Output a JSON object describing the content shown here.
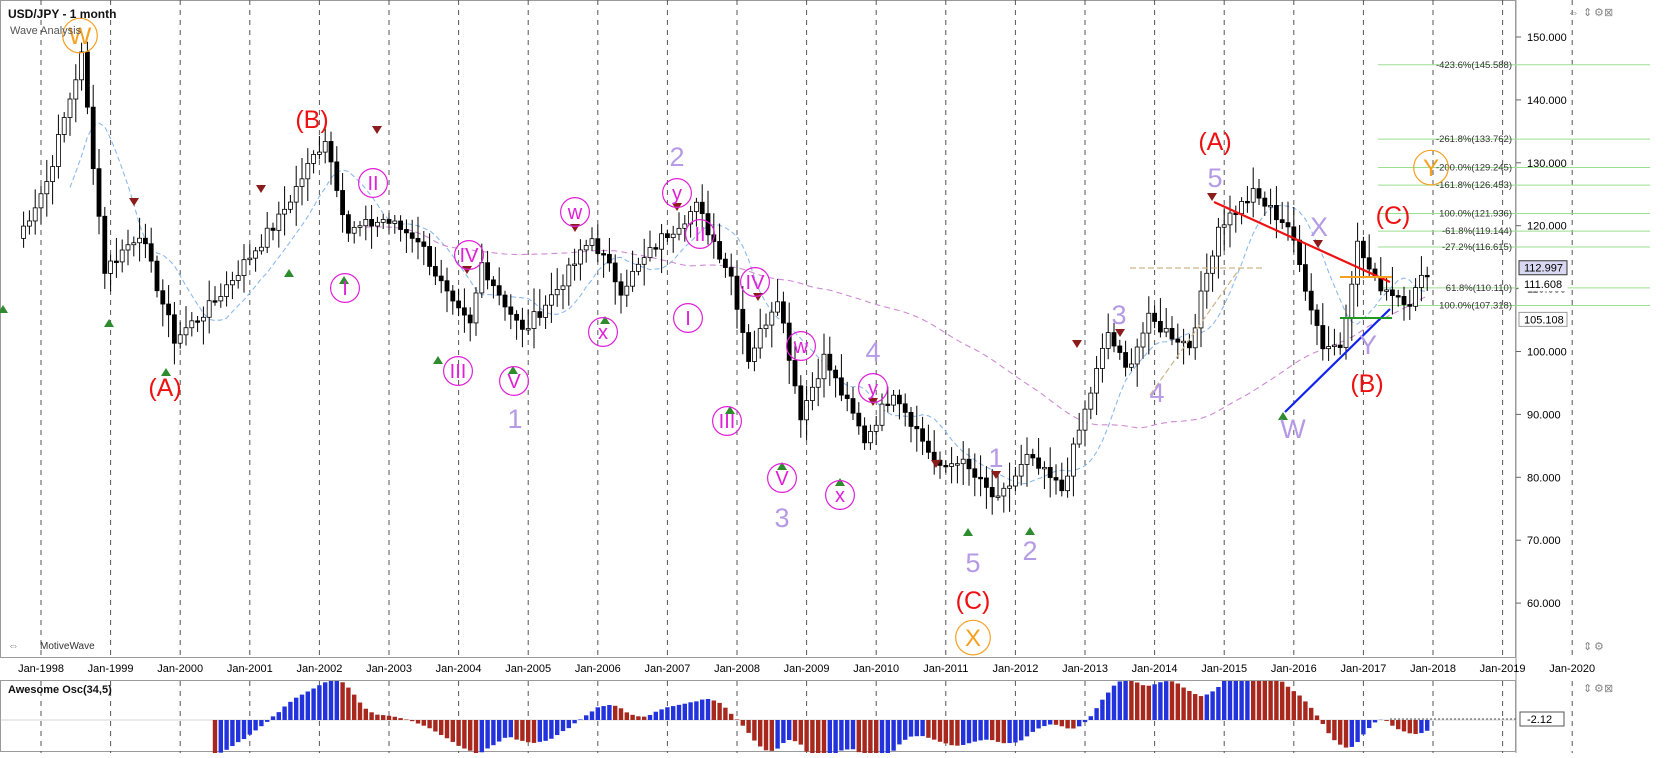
{
  "chart_data": {
    "type": "candlestick",
    "title": "USD/JPY - 1 month",
    "subtitle": "Wave Analysis",
    "watermark": "MotiveWave",
    "ylim": [
      57,
      157
    ],
    "x_range": [
      "Aug 1997",
      "Nov 2020"
    ],
    "y_ticks": [
      "150.000",
      "140.000",
      "130.000",
      "120.000",
      "110.000",
      "100.000",
      "90.000",
      "80.000",
      "70.000",
      "60.000"
    ],
    "x_ticks": [
      "Jan-1998",
      "Jan-1999",
      "Jan-2000",
      "Jan-2001",
      "Jan-2002",
      "Jan-2003",
      "Jan-2004",
      "Jan-2005",
      "Jan-2006",
      "Jan-2007",
      "Jan-2008",
      "Jan-2009",
      "Jan-2010",
      "Jan-2011",
      "Jan-2012",
      "Jan-2013",
      "Jan-2014",
      "Jan-2015",
      "Jan-2016",
      "Jan-2017",
      "Jan-2018",
      "Jan-2019",
      "Jan-2020"
    ],
    "price_path": [
      [
        "1997-09",
        118
      ],
      [
        "1998-02",
        127
      ],
      [
        "1998-08",
        147
      ],
      [
        "1998-12",
        113
      ],
      [
        "1999-06",
        119
      ],
      [
        "1999-12",
        102
      ],
      [
        "2000-06",
        107
      ],
      [
        "2000-12",
        114
      ],
      [
        "2001-06",
        121
      ],
      [
        "2001-12",
        131
      ],
      [
        "2002-02",
        134
      ],
      [
        "2002-06",
        119
      ],
      [
        "2002-12",
        121
      ],
      [
        "2003-06",
        118
      ],
      [
        "2003-12",
        107
      ],
      [
        "2004-03",
        104
      ],
      [
        "2004-05",
        114
      ],
      [
        "2004-12",
        103
      ],
      [
        "2005-06",
        110
      ],
      [
        "2005-12",
        118
      ],
      [
        "2006-05",
        110
      ],
      [
        "2006-12",
        118
      ],
      [
        "2007-06",
        123
      ],
      [
        "2007-12",
        112
      ],
      [
        "2008-03",
        99
      ],
      [
        "2008-08",
        109
      ],
      [
        "2008-12",
        90
      ],
      [
        "2009-04",
        99
      ],
      [
        "2009-11",
        86
      ],
      [
        "2010-04",
        94
      ],
      [
        "2010-12",
        81
      ],
      [
        "2011-03",
        83
      ],
      [
        "2011-10",
        76
      ],
      [
        "2012-03",
        83
      ],
      [
        "2012-09",
        78
      ],
      [
        "2013-05",
        103
      ],
      [
        "2013-08",
        97
      ],
      [
        "2013-12",
        105
      ],
      [
        "2014-07",
        101
      ],
      [
        "2014-12",
        120
      ],
      [
        "2015-06",
        125
      ],
      [
        "2015-12",
        120
      ],
      [
        "2016-06",
        101
      ],
      [
        "2016-09",
        101
      ],
      [
        "2016-12",
        117
      ],
      [
        "2017-03",
        111
      ],
      [
        "2017-09",
        108
      ],
      [
        "2017-12",
        113
      ]
    ],
    "last_price": "112.997",
    "price_tags": [
      "111.608",
      "105.108"
    ],
    "overlays": [
      "moving average (light blue dashed)",
      "moving average (pink dashed)",
      "moving average (tan dashed)",
      "resistance trend line (red)",
      "support trend line (blue)",
      "range top (orange)",
      "range bottom (green)"
    ],
    "fibonacci_levels": [
      "-423.6%(145.588)",
      "-261.8%(133.762)",
      "-200.0%(129.245)",
      "-161.8%(126.453)",
      "100.0%(121.936)",
      "-61.8%(119.144)",
      "-27.2%(116.615)",
      "61.8%(110.110)",
      "100.0%(107.318)"
    ],
    "fibonacci_prices": [
      145.588,
      133.762,
      129.245,
      126.453,
      121.936,
      119.144,
      116.615,
      110.11,
      107.318
    ],
    "wave_labels_orange": [
      "W",
      "X",
      "Y"
    ],
    "wave_labels_red": [
      "(A)",
      "(B)",
      "(C)",
      "(A)",
      "(B)",
      "(C)"
    ],
    "wave_labels_purple": [
      "1",
      "2",
      "3",
      "4",
      "5",
      "1",
      "2",
      "3",
      "4",
      "5",
      "X",
      "Y",
      "W"
    ],
    "wave_labels_pink": [
      "I",
      "II",
      "III",
      "IV",
      "V",
      "w",
      "x",
      "y",
      "II",
      "I",
      "III",
      "IV",
      "V",
      "w",
      "x",
      "y"
    ],
    "indicator": {
      "name": "Awesome Osc(34,5)",
      "value_label": "-2.12",
      "colors": {
        "up": "#2233dd",
        "down": "#a8281e"
      }
    },
    "colors": {
      "candle": "#000000",
      "red_label": "#ee1111",
      "purple_label": "#b59ae6",
      "pink_label": "#e020d8",
      "orange_label": "#f5a020",
      "fib_line": "#9adf8f"
    }
  }
}
